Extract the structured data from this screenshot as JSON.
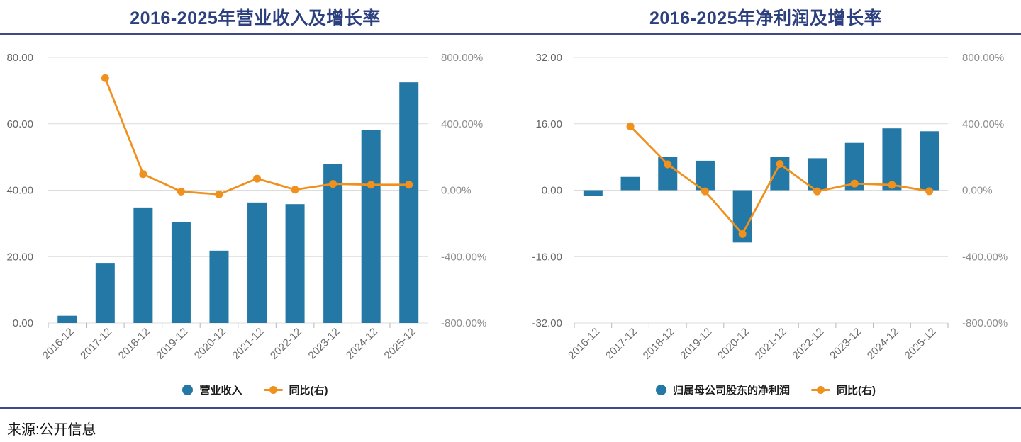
{
  "source": "来源:公开信息",
  "colors": {
    "bar": "#2478a6",
    "line": "#f0901d",
    "title": "#2c3f7e",
    "rule": "#3e4a87",
    "grid": "#dcdcdc",
    "tick": "#b5b5b5"
  },
  "charts": [
    {
      "chart_data": {
        "type": "bar+line dual-axis",
        "title": "2016-2025年营业收入及增长率",
        "categories": [
          "2016-12",
          "2017-12",
          "2018-12",
          "2019-12",
          "2020-12",
          "2021-12",
          "2022-12",
          "2023-12",
          "2024-12",
          "2025-12"
        ],
        "series": [
          {
            "name": "营业收入",
            "type": "bar",
            "axis": "left",
            "color": "#2478a6",
            "values": [
              2.2,
              17.9,
              34.8,
              30.5,
              21.8,
              36.3,
              35.8,
              47.9,
              58.2,
              72.5
            ]
          },
          {
            "name": "同比(右)",
            "type": "line",
            "axis": "right",
            "color": "#f0901d",
            "unit": "%",
            "values": [
              null,
              675,
              97,
              -8,
              -25,
              70,
              3,
              38,
              33,
              33
            ]
          }
        ],
        "left_axis": {
          "min": 0,
          "max": 80,
          "tick_labels": [
            "80.00",
            "60.00",
            "40.00",
            "20.00",
            "0.00"
          ]
        },
        "right_axis": {
          "min": -800,
          "max": 800,
          "tick_labels": [
            "800.00%",
            "400.00%",
            "0.00%",
            "-400.00%",
            "-800.00%"
          ]
        },
        "grid": true,
        "legend_position": "bottom"
      }
    },
    {
      "chart_data": {
        "type": "bar+line dual-axis",
        "title": "2016-2025年净利润及增长率",
        "categories": [
          "2016-12",
          "2017-12",
          "2018-12",
          "2019-12",
          "2020-12",
          "2021-12",
          "2022-12",
          "2023-12",
          "2024-12",
          "2025-12"
        ],
        "series": [
          {
            "name": "归属母公司股东的净利润",
            "type": "bar",
            "axis": "left",
            "color": "#2478a6",
            "values": [
              -1.3,
              3.2,
              8.1,
              7.1,
              -12.6,
              8.0,
              7.7,
              11.4,
              14.9,
              14.2
            ]
          },
          {
            "name": "同比(右)",
            "type": "line",
            "axis": "right",
            "color": "#f0901d",
            "unit": "%",
            "values": [
              null,
              385,
              156,
              -7,
              -264,
              158,
              -7,
              40,
              32,
              -6
            ]
          }
        ],
        "left_axis": {
          "min": -32,
          "max": 32,
          "tick_labels": [
            "32.00",
            "16.00",
            "0.00",
            "-16.00",
            "-32.00"
          ]
        },
        "right_axis": {
          "min": -800,
          "max": 800,
          "tick_labels": [
            "800.00%",
            "400.00%",
            "0.00%",
            "-400.00%",
            "-800.00%"
          ]
        },
        "grid": true,
        "legend_position": "bottom"
      }
    }
  ]
}
